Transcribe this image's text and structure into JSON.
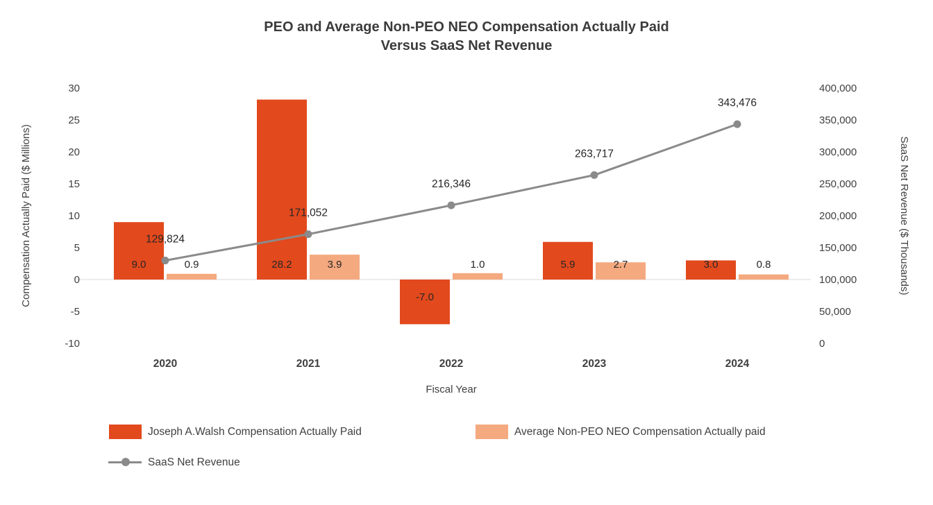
{
  "title": {
    "line1": "PEO and Average Non-PEO NEO Compensation Actually Paid",
    "line2": "Versus SaaS Net Revenue"
  },
  "chart_data": {
    "type": "combo-bar-line",
    "categories": [
      "2020",
      "2021",
      "2022",
      "2023",
      "2024"
    ],
    "xlabel": "Fiscal Year",
    "series": [
      {
        "name": "Joseph A.Walsh Compensation Actually Paid",
        "type": "bar",
        "axis": "left",
        "color": "#E2491D",
        "values": [
          9.0,
          28.2,
          -7.0,
          5.9,
          3.0
        ],
        "labels": [
          "9.0",
          "28.2",
          "-7.0",
          "5.9",
          "3.0"
        ]
      },
      {
        "name": "Average Non-PEO NEO Compensation Actually paid",
        "type": "bar",
        "axis": "left",
        "color": "#F4A97F",
        "values": [
          0.9,
          3.9,
          1.0,
          2.7,
          0.8
        ],
        "labels": [
          "0.9",
          "3.9",
          "1.0",
          "2.7",
          "0.8"
        ]
      },
      {
        "name": "SaaS Net Revenue",
        "type": "line",
        "axis": "right",
        "color": "#8A8A8A",
        "values": [
          129824,
          171052,
          216346,
          263717,
          343476
        ],
        "labels": [
          "129,824",
          "171,052",
          "216,346",
          "263,717",
          "343,476"
        ]
      }
    ],
    "left_axis": {
      "label": "Compensation Actually Paid ($ Millions)",
      "min": -10,
      "max": 30,
      "step": 5,
      "ticks": [
        "30",
        "25",
        "20",
        "15",
        "10",
        "5",
        "0",
        "-5",
        "-10"
      ]
    },
    "right_axis": {
      "label": "SaaS Net Revenue ($ Thousands)",
      "min": 0,
      "max": 400000,
      "step": 50000,
      "ticks": [
        "400,000",
        "350,000",
        "300,000",
        "250,000",
        "200,000",
        "150,000",
        "100,000",
        "50,000",
        "0"
      ]
    },
    "grid": "zero-line-only",
    "legend_position": "bottom-left",
    "text_color": "#3F3F3F",
    "gridline_color": "#D9D9D9"
  }
}
